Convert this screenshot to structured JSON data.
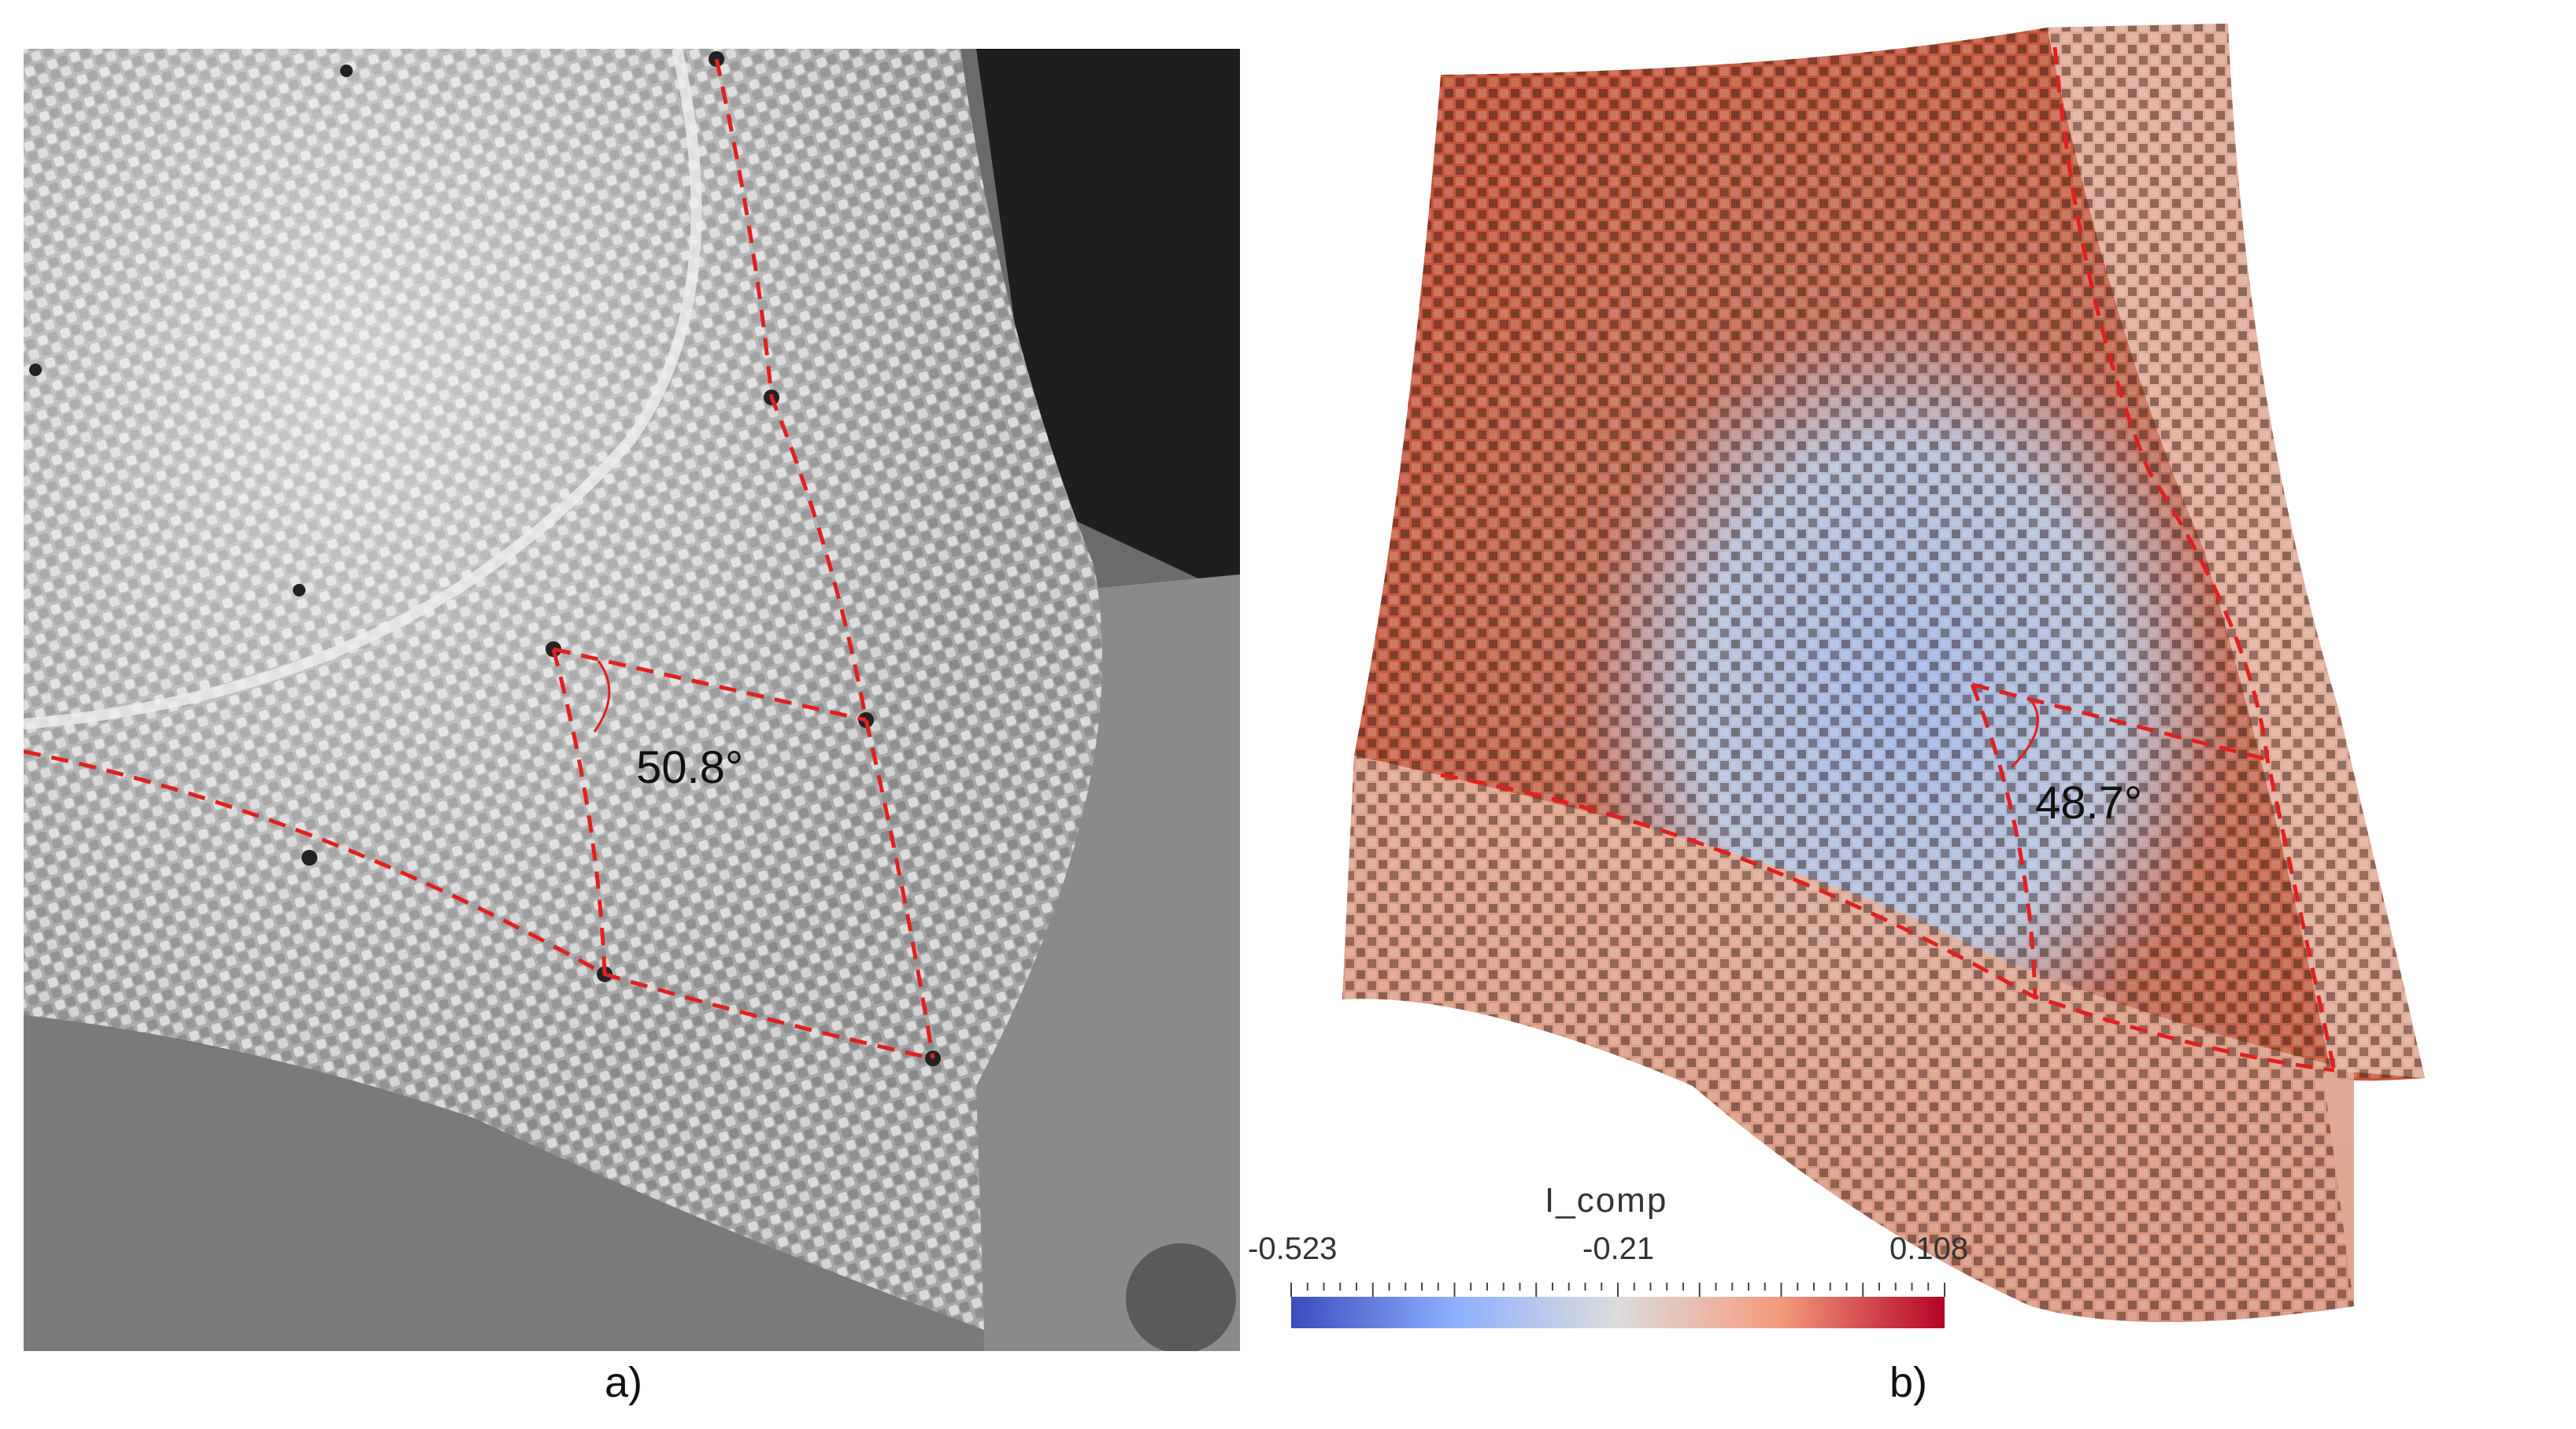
{
  "panels": {
    "a": {
      "label": "a)",
      "angle_label": "50.8°",
      "description_colors": {
        "fabric": "#bdbdbd",
        "background": "#2b2b2b"
      }
    },
    "b": {
      "label": "b)",
      "angle_label": "48.7°",
      "description_colors": {
        "high": "#c0402e",
        "low": "#6f8fd6",
        "neutral": "#e6b9a3"
      }
    }
  },
  "colorbar": {
    "title": "I_comp",
    "ticks": {
      "min": "-0.523",
      "mid": "-0.21",
      "max": "0.108"
    },
    "gradient": {
      "low": "#3b4cc0",
      "mid": "#dddddd",
      "high": "#b40426"
    }
  },
  "overlay_color": "#e02020"
}
